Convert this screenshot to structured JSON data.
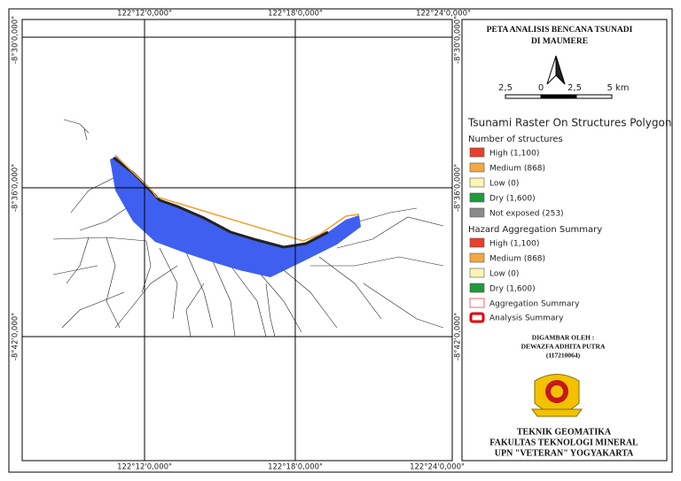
{
  "map": {
    "top_labels": [
      "122°12'0,000\"",
      "122°18'0,000\"",
      "122°24'0,000\""
    ],
    "bottom_labels": [
      "122°12'0,000\"",
      "122°18'0,000\"",
      "122°24'0,000\""
    ],
    "left_labels": [
      "-8°30'0,000\"",
      "-8°36'0,000\"",
      "-8°42'0,000\""
    ],
    "right_labels": [
      "-8°30'0,000\"",
      "-8°36'0,000\"",
      "-8°42'0,000\""
    ]
  },
  "panel": {
    "title": [
      "PETA ANALISIS BENCANA TSUNADI",
      "DI MAUMERE"
    ],
    "scale_labels": [
      "2,5",
      "0",
      "2,5",
      "5 km"
    ],
    "legend_title": "Tsunami Raster On Structures Polygon",
    "group1": {
      "heading": "Number of structures",
      "items": [
        "High (1,100)",
        "Medium (868)",
        "Low (0)",
        "Dry (1,600)",
        "Not exposed (253)"
      ]
    },
    "group2": {
      "heading": "Hazard Aggregation Summary",
      "items": [
        "High (1,100)",
        "Medium (868)",
        "Low (0)",
        "Dry (1,600)",
        "Aggregation Summary",
        "Analysis Summary"
      ]
    },
    "drawn_by": [
      "DIGAMBAR OLEH :",
      "DEWAZFA ADHITA PUTRA",
      "(117210064)"
    ],
    "institution": [
      "TEKNIK GEOMATIKA",
      "FAKULTAS TEKNOLOGI MINERAL",
      "UPN \"VETERAN\" YOGYAKARTA"
    ]
  }
}
